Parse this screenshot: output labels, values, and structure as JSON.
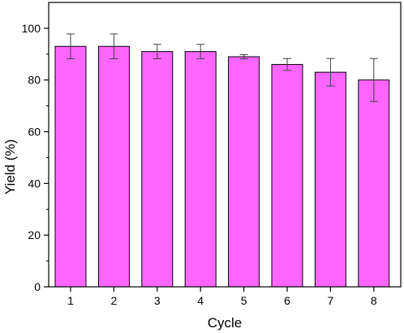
{
  "chart_data": {
    "type": "bar",
    "categories": [
      "1",
      "2",
      "3",
      "4",
      "5",
      "6",
      "7",
      "8"
    ],
    "values": [
      93,
      93,
      91,
      91,
      89,
      86,
      83,
      80
    ],
    "errors": [
      4.8,
      4.8,
      2.8,
      2.8,
      0.8,
      2.3,
      5.3,
      8.3
    ],
    "xlabel": "Cycle",
    "ylabel": "Yield (%)",
    "ylim": [
      0,
      110
    ],
    "yticks": [
      0,
      20,
      40,
      60,
      80,
      100
    ],
    "yticks_minor": [
      10,
      30,
      50,
      70,
      90
    ],
    "bar_color": "#ff66ff",
    "bar_edge_color": "#000000",
    "grid": false,
    "legend": "none"
  }
}
